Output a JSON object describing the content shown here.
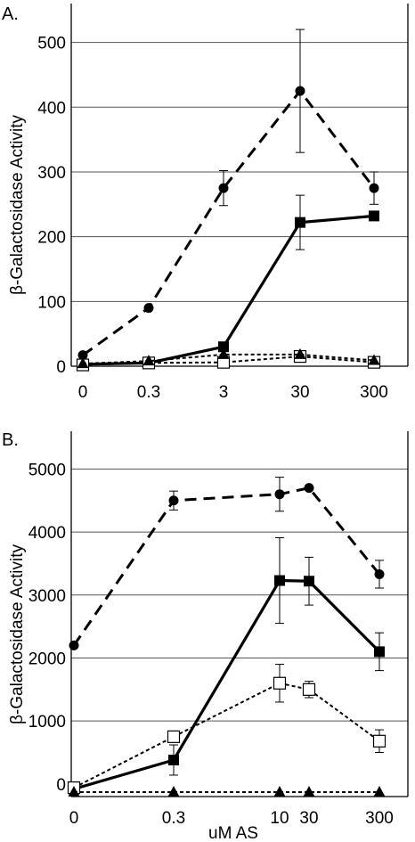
{
  "chart_data": [
    {
      "panel_label": "A.",
      "type": "line",
      "categories": [
        "0",
        "0.3",
        "3",
        "30",
        "300"
      ],
      "ylabel": "β-Galactosidase Activity",
      "xlabel": "",
      "ylim": [
        0,
        560
      ],
      "yticks": [
        "100",
        "200",
        "300",
        "400",
        "500",
        "0"
      ],
      "ytick_values": [
        100,
        200,
        300,
        400,
        500,
        0
      ],
      "grid": true,
      "series": [
        {
          "marker": "circle",
          "line": "dashed",
          "values": [
            17,
            90,
            275,
            425,
            275
          ],
          "errors": [
            0,
            0,
            27,
            95,
            25
          ]
        },
        {
          "marker": "square",
          "line": "solid",
          "values": [
            3,
            5,
            30,
            222,
            232
          ],
          "errors": [
            0,
            0,
            0,
            42,
            0
          ]
        },
        {
          "marker": "open-square",
          "line": "dotted",
          "values": [
            2,
            5,
            6,
            15,
            6
          ],
          "errors": [
            0,
            0,
            0,
            0,
            0
          ]
        },
        {
          "marker": "triangle",
          "line": "dotted",
          "values": [
            4,
            8,
            18,
            18,
            9
          ],
          "errors": [
            0,
            0,
            0,
            0,
            0
          ]
        }
      ]
    },
    {
      "panel_label": "B.",
      "type": "line",
      "categories": [
        "0",
        "0.3",
        "10",
        "30",
        "300"
      ],
      "ylabel": "β-Galactosidase Activity",
      "xlabel": "uM AS",
      "ylim": [
        -200,
        5600
      ],
      "yticks": [
        "1000",
        "2000",
        "3000",
        "4000",
        "5000",
        "0"
      ],
      "ytick_values": [
        1000,
        2000,
        3000,
        4000,
        5000,
        0
      ],
      "grid": true,
      "series": [
        {
          "marker": "circle",
          "line": "dashed",
          "values": [
            2200,
            4500,
            4600,
            4700,
            3330
          ],
          "errors": [
            0,
            150,
            270,
            0,
            220
          ]
        },
        {
          "marker": "square",
          "line": "solid",
          "values": [
            -80,
            380,
            3230,
            3220,
            2100
          ],
          "errors": [
            0,
            240,
            680,
            380,
            300
          ]
        },
        {
          "marker": "open-square",
          "line": "dotted",
          "values": [
            -60,
            750,
            1600,
            1500,
            680
          ],
          "errors": [
            0,
            0,
            300,
            130,
            180
          ]
        },
        {
          "marker": "triangle",
          "line": "dotted",
          "values": [
            -130,
            -130,
            -130,
            -130,
            -130
          ],
          "errors": [
            0,
            0,
            0,
            0,
            0
          ]
        }
      ]
    }
  ]
}
